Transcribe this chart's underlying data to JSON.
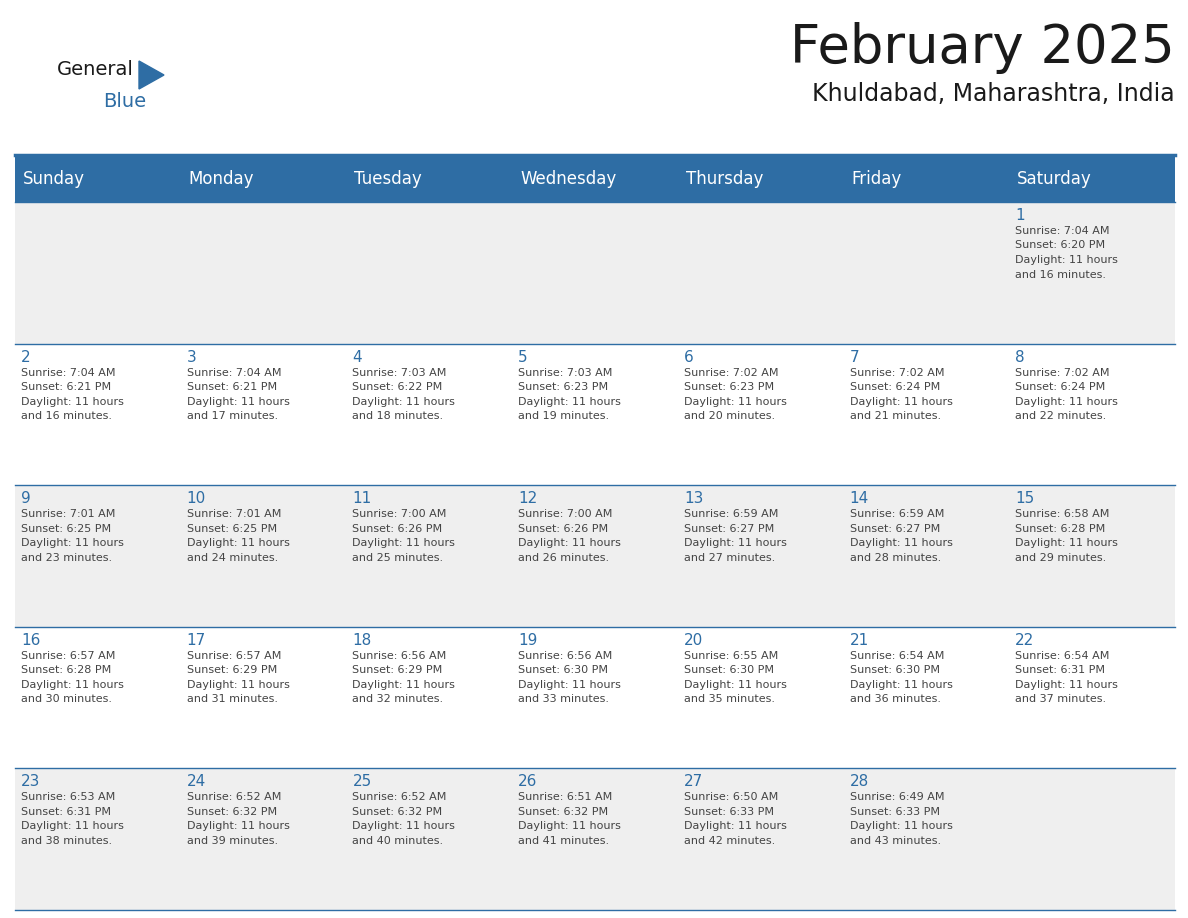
{
  "title": "February 2025",
  "subtitle": "Khuldabad, Maharashtra, India",
  "header_bg": "#2E6DA4",
  "header_text_color": "#FFFFFF",
  "cell_bg_light": "#EFEFEF",
  "cell_bg_white": "#FFFFFF",
  "day_number_color": "#2E6DA4",
  "cell_text_color": "#444444",
  "border_color": "#2E6DA4",
  "days_of_week": [
    "Sunday",
    "Monday",
    "Tuesday",
    "Wednesday",
    "Thursday",
    "Friday",
    "Saturday"
  ],
  "weeks": [
    [
      null,
      null,
      null,
      null,
      null,
      null,
      {
        "day": 1,
        "sunrise": "7:04 AM",
        "sunset": "6:20 PM",
        "daylight_hours": 11,
        "daylight_minutes": 16
      }
    ],
    [
      {
        "day": 2,
        "sunrise": "7:04 AM",
        "sunset": "6:21 PM",
        "daylight_hours": 11,
        "daylight_minutes": 16
      },
      {
        "day": 3,
        "sunrise": "7:04 AM",
        "sunset": "6:21 PM",
        "daylight_hours": 11,
        "daylight_minutes": 17
      },
      {
        "day": 4,
        "sunrise": "7:03 AM",
        "sunset": "6:22 PM",
        "daylight_hours": 11,
        "daylight_minutes": 18
      },
      {
        "day": 5,
        "sunrise": "7:03 AM",
        "sunset": "6:23 PM",
        "daylight_hours": 11,
        "daylight_minutes": 19
      },
      {
        "day": 6,
        "sunrise": "7:02 AM",
        "sunset": "6:23 PM",
        "daylight_hours": 11,
        "daylight_minutes": 20
      },
      {
        "day": 7,
        "sunrise": "7:02 AM",
        "sunset": "6:24 PM",
        "daylight_hours": 11,
        "daylight_minutes": 21
      },
      {
        "day": 8,
        "sunrise": "7:02 AM",
        "sunset": "6:24 PM",
        "daylight_hours": 11,
        "daylight_minutes": 22
      }
    ],
    [
      {
        "day": 9,
        "sunrise": "7:01 AM",
        "sunset": "6:25 PM",
        "daylight_hours": 11,
        "daylight_minutes": 23
      },
      {
        "day": 10,
        "sunrise": "7:01 AM",
        "sunset": "6:25 PM",
        "daylight_hours": 11,
        "daylight_minutes": 24
      },
      {
        "day": 11,
        "sunrise": "7:00 AM",
        "sunset": "6:26 PM",
        "daylight_hours": 11,
        "daylight_minutes": 25
      },
      {
        "day": 12,
        "sunrise": "7:00 AM",
        "sunset": "6:26 PM",
        "daylight_hours": 11,
        "daylight_minutes": 26
      },
      {
        "day": 13,
        "sunrise": "6:59 AM",
        "sunset": "6:27 PM",
        "daylight_hours": 11,
        "daylight_minutes": 27
      },
      {
        "day": 14,
        "sunrise": "6:59 AM",
        "sunset": "6:27 PM",
        "daylight_hours": 11,
        "daylight_minutes": 28
      },
      {
        "day": 15,
        "sunrise": "6:58 AM",
        "sunset": "6:28 PM",
        "daylight_hours": 11,
        "daylight_minutes": 29
      }
    ],
    [
      {
        "day": 16,
        "sunrise": "6:57 AM",
        "sunset": "6:28 PM",
        "daylight_hours": 11,
        "daylight_minutes": 30
      },
      {
        "day": 17,
        "sunrise": "6:57 AM",
        "sunset": "6:29 PM",
        "daylight_hours": 11,
        "daylight_minutes": 31
      },
      {
        "day": 18,
        "sunrise": "6:56 AM",
        "sunset": "6:29 PM",
        "daylight_hours": 11,
        "daylight_minutes": 32
      },
      {
        "day": 19,
        "sunrise": "6:56 AM",
        "sunset": "6:30 PM",
        "daylight_hours": 11,
        "daylight_minutes": 33
      },
      {
        "day": 20,
        "sunrise": "6:55 AM",
        "sunset": "6:30 PM",
        "daylight_hours": 11,
        "daylight_minutes": 35
      },
      {
        "day": 21,
        "sunrise": "6:54 AM",
        "sunset": "6:30 PM",
        "daylight_hours": 11,
        "daylight_minutes": 36
      },
      {
        "day": 22,
        "sunrise": "6:54 AM",
        "sunset": "6:31 PM",
        "daylight_hours": 11,
        "daylight_minutes": 37
      }
    ],
    [
      {
        "day": 23,
        "sunrise": "6:53 AM",
        "sunset": "6:31 PM",
        "daylight_hours": 11,
        "daylight_minutes": 38
      },
      {
        "day": 24,
        "sunrise": "6:52 AM",
        "sunset": "6:32 PM",
        "daylight_hours": 11,
        "daylight_minutes": 39
      },
      {
        "day": 25,
        "sunrise": "6:52 AM",
        "sunset": "6:32 PM",
        "daylight_hours": 11,
        "daylight_minutes": 40
      },
      {
        "day": 26,
        "sunrise": "6:51 AM",
        "sunset": "6:32 PM",
        "daylight_hours": 11,
        "daylight_minutes": 41
      },
      {
        "day": 27,
        "sunrise": "6:50 AM",
        "sunset": "6:33 PM",
        "daylight_hours": 11,
        "daylight_minutes": 42
      },
      {
        "day": 28,
        "sunrise": "6:49 AM",
        "sunset": "6:33 PM",
        "daylight_hours": 11,
        "daylight_minutes": 43
      },
      null
    ]
  ],
  "title_fontsize": 38,
  "subtitle_fontsize": 17,
  "day_header_fontsize": 12,
  "day_number_fontsize": 11,
  "cell_text_fontsize": 8.0,
  "logo_general_fontsize": 14,
  "logo_blue_fontsize": 14
}
